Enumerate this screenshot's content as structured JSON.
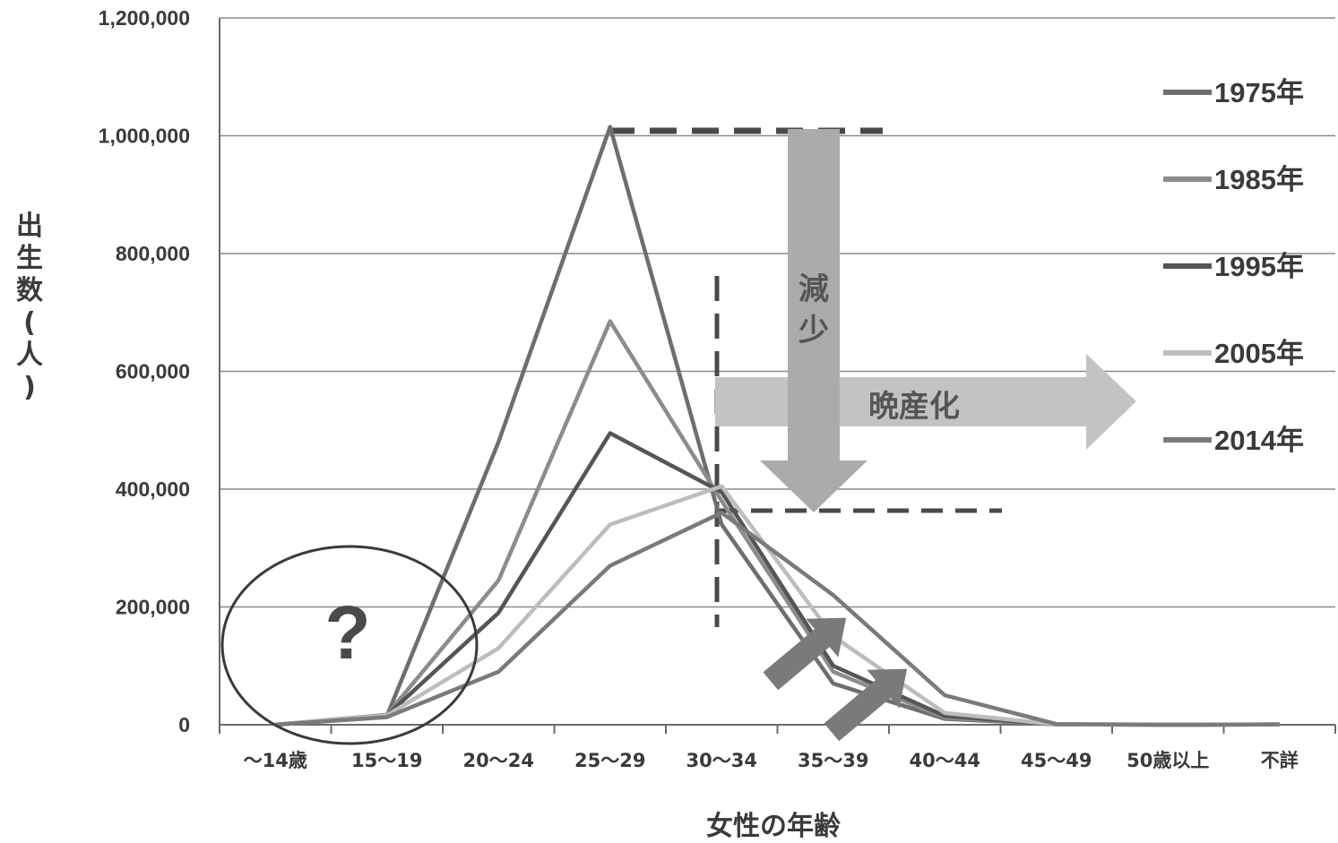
{
  "chart_data": {
    "type": "line",
    "title": "",
    "xlabel": "女性の年齢",
    "ylabel": "出生数(人)",
    "ylim": [
      0,
      1200000
    ],
    "yticks": [
      0,
      200000,
      400000,
      600000,
      800000,
      1000000,
      1200000
    ],
    "ytick_labels": [
      "0",
      "200,000",
      "400,000",
      "600,000",
      "800,000",
      "1,000,000",
      "1,200,000"
    ],
    "grid": true,
    "legend_position": "right",
    "categories": [
      "～14歳",
      "15～19",
      "20～24",
      "25～29",
      "30～34",
      "35～39",
      "40～44",
      "45～49",
      "50歳以上",
      "不詳"
    ],
    "series": [
      {
        "name": "1975年",
        "color": "#6e6e6e",
        "values": [
          0,
          15000,
          480000,
          1015000,
          340000,
          70000,
          10000,
          500,
          0,
          500
        ]
      },
      {
        "name": "1985年",
        "color": "#8c8c8c",
        "values": [
          0,
          17000,
          245000,
          685000,
          380000,
          90000,
          12000,
          500,
          0,
          500
        ]
      },
      {
        "name": "1995年",
        "color": "#555555",
        "values": [
          0,
          16000,
          190000,
          495000,
          395000,
          100000,
          15000,
          500,
          0,
          500
        ]
      },
      {
        "name": "2005年",
        "color": "#bdbdbd",
        "values": [
          0,
          16000,
          130000,
          340000,
          405000,
          150000,
          20000,
          600,
          0,
          500
        ]
      },
      {
        "name": "2014年",
        "color": "#7a7a7a",
        "values": [
          0,
          13000,
          90000,
          270000,
          360000,
          220000,
          50000,
          1200,
          0,
          500
        ]
      }
    ],
    "annotations": {
      "decrease": "減少",
      "later_childbirth": "晩産化",
      "unknown": "?"
    }
  }
}
